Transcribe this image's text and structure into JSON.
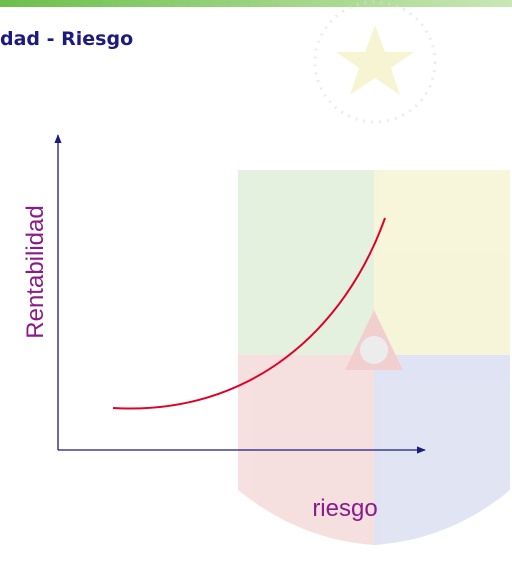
{
  "title": "dad - Riesgo",
  "y_axis_label": "Rentabilidad",
  "x_axis_label": "riesgo"
}
